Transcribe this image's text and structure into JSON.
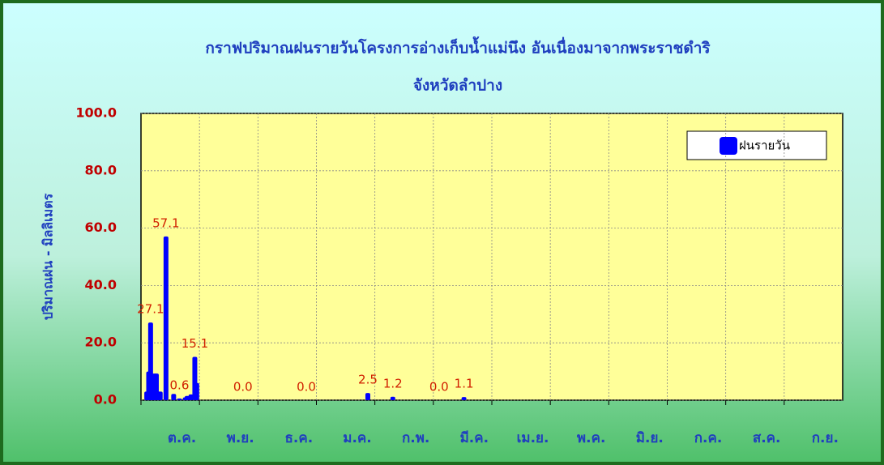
{
  "chart_data": {
    "type": "bar",
    "title": [
      "กราฟปริมาณฝนรายวันโครงการอ่างเก็บน้ำแม่นึง อันเนื่องมาจากพระราชดำริ",
      "จังหวัดลำปาง"
    ],
    "ylabel": "ปริมาณฝน - มิลลิเมตร",
    "x_labels": [
      "ต.ค.",
      "พ.ย.",
      "ธ.ค.",
      "ม.ค.",
      "ก.พ.",
      "มี.ค.",
      "เม.ย.",
      "พ.ค.",
      "มิ.ย.",
      "ก.ค.",
      "ส.ค.",
      "ก.ย."
    ],
    "xlim": [
      0,
      365
    ],
    "ylim": [
      0,
      100
    ],
    "yticks": [
      {
        "value": 0,
        "label": "0.0"
      },
      {
        "value": 20,
        "label": "20.0"
      },
      {
        "value": 40,
        "label": "40.0"
      },
      {
        "value": 60,
        "label": "60.0"
      },
      {
        "value": 80,
        "label": "80.0"
      },
      {
        "value": 100,
        "label": "100.0"
      }
    ],
    "grid": true,
    "legend": "top-right",
    "series": [
      {
        "name": "ฝนรายวัน",
        "color": "#0000ff",
        "x": [
          3,
          4,
          5,
          6,
          7,
          8,
          9,
          10,
          13,
          17,
          20,
          23,
          24,
          26,
          28,
          29,
          53,
          86,
          118,
          131,
          155,
          168
        ],
        "values": [
          3.0,
          10.0,
          27.1,
          8.0,
          9.3,
          9.3,
          3.0,
          3.0,
          57.1,
          2.2,
          0.6,
          1.0,
          1.5,
          2.0,
          15.1,
          6.0,
          0.0,
          0.0,
          2.5,
          1.2,
          0.0,
          1.1
        ],
        "value_labels": [
          null,
          null,
          "27.1",
          null,
          null,
          null,
          null,
          null,
          "57.1",
          null,
          "0.6",
          null,
          null,
          null,
          "15.1",
          null,
          "0.0",
          "0.0",
          "2.5",
          "1.2",
          "0.0",
          "1.1"
        ]
      }
    ]
  }
}
